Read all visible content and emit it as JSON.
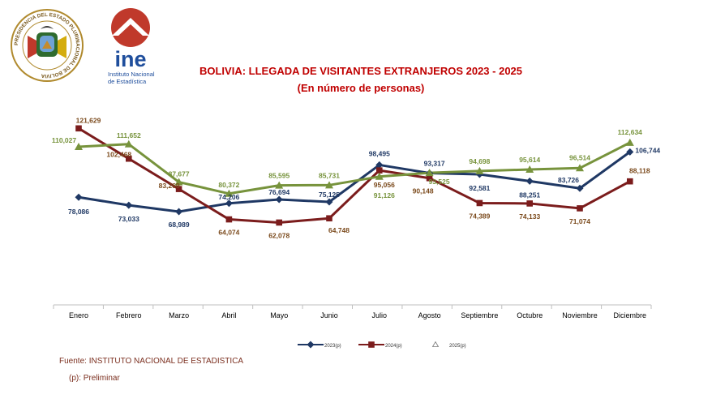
{
  "header": {
    "seal_text": "PRESIDENCIA DEL ESTADO PLURINACIONAL DE BOLIVIA",
    "ine_logo": "ine",
    "ine_subtitle_1": "Instituto Nacional",
    "ine_subtitle_2": "de Estadística"
  },
  "footer": {
    "source": "Fuente: INSTITUTO NACIONAL DE ESTADISTICA",
    "note": "(p): Preliminar"
  },
  "colors": {
    "s2023": "#1f3864",
    "s2024": "#7b1c1c",
    "s2025": "#77933c",
    "title": "#c00000",
    "footer": "#7b2f1f"
  },
  "chart_data": {
    "type": "line",
    "title": "BOLIVIA: LLEGADA DE VISITANTES EXTRANJEROS 2023 - 2025",
    "subtitle": "(En número de personas)",
    "categories": [
      "Enero",
      "Febrero",
      "Marzo",
      "Abril",
      "Mayo",
      "Junio",
      "Julio",
      "Agosto",
      "Septiembre",
      "Octubre",
      "Noviembre",
      "Diciembre"
    ],
    "ylim": [
      0,
      130000
    ],
    "legend_position": "bottom",
    "series": [
      {
        "name": "2023(p)",
        "marker": "diamond",
        "values": [
          78086,
          73033,
          68989,
          74206,
          76694,
          75125,
          98495,
          93317,
          92581,
          88251,
          83726,
          106744
        ],
        "labels": [
          "78,086",
          "73,033",
          "68,989",
          "74,206",
          "76,694",
          "75,125",
          "98,495",
          "93,317",
          "92,581",
          "88,251",
          "83,726",
          "106,744"
        ]
      },
      {
        "name": "2024(p)",
        "marker": "square",
        "values": [
          121629,
          102468,
          83269,
          64074,
          62078,
          64748,
          95056,
          90148,
          74389,
          74133,
          71074,
          88118
        ],
        "labels": [
          "121,629",
          "102,468",
          "83,269",
          "64,074",
          "62,078",
          "64,748",
          "95,056",
          "90,148",
          "74,389",
          "74,133",
          "71,074",
          "88,118"
        ]
      },
      {
        "name": "2025(p)",
        "marker": "triangle",
        "values": [
          110027,
          111652,
          87677,
          80372,
          85595,
          85731,
          91126,
          93525,
          94698,
          95614,
          96514,
          112634
        ],
        "labels": [
          "110,027",
          "111,652",
          "87,677",
          "80,372",
          "85,595",
          "85,731",
          "91,126",
          "93,525",
          "94,698",
          "95,614",
          "96,514",
          "112,634"
        ]
      }
    ]
  }
}
